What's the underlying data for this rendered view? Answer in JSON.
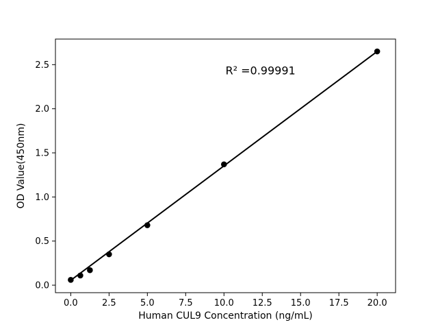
{
  "chart_data": {
    "type": "scatter",
    "xlabel": "Human CUL9 Concentration (ng/mL)",
    "ylabel": "OD Value(450nm)",
    "x": [
      0,
      0.625,
      1.25,
      2.5,
      5,
      10,
      20
    ],
    "y": [
      0.06,
      0.11,
      0.17,
      0.35,
      0.68,
      1.37,
      2.65
    ],
    "fit_line": {
      "x1": 0,
      "y1": 0.055,
      "x2": 20,
      "y2": 2.65,
      "r_squared": 0.99991
    },
    "annotation": {
      "text": "R² =0.99991",
      "x": 10.1,
      "y": 2.39
    },
    "xlim": [
      -1.0,
      21.2
    ],
    "ylim": [
      -0.085,
      2.79
    ],
    "xticks": {
      "values": [
        0,
        2.5,
        5,
        7.5,
        10,
        12.5,
        15,
        17.5,
        20
      ],
      "labels": [
        "0.0",
        "2.5",
        "5.0",
        "7.5",
        "10.0",
        "12.5",
        "15.0",
        "17.5",
        "20.0"
      ]
    },
    "yticks": {
      "values": [
        0,
        0.5,
        1,
        1.5,
        2,
        2.5
      ],
      "labels": [
        "0.0",
        "0.5",
        "1.0",
        "1.5",
        "2.0",
        "2.5"
      ]
    },
    "grid": false,
    "legend_position": "none",
    "colors": {
      "marker": "#000000",
      "line": "#000000",
      "frame": "#000000",
      "background": "#ffffff"
    }
  }
}
